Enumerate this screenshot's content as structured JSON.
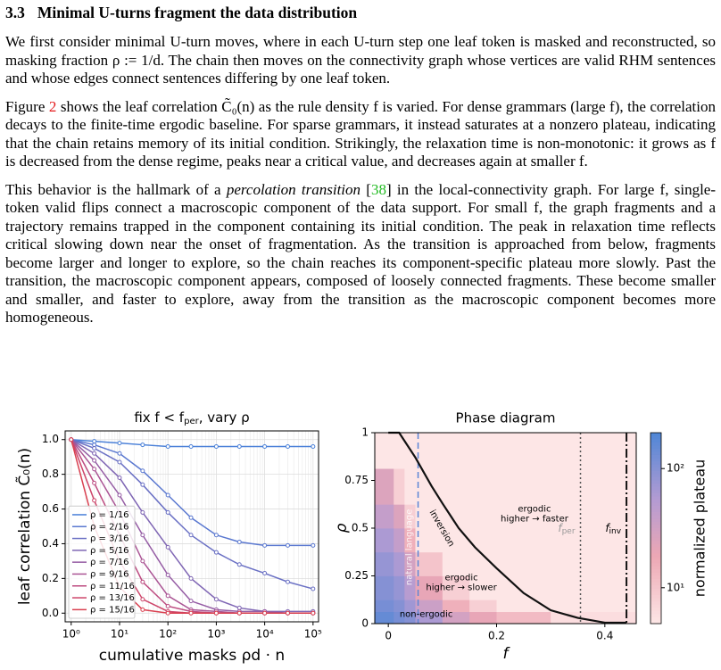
{
  "section": {
    "number": "3.3",
    "title": "Minimal U-turns fragment the data distribution"
  },
  "paragraphs": [
    [
      "We first consider minimal U-turn moves, where in each U-turn step one leaf token is masked and reconstructed, so masking fraction ρ := 1/d. The chain then moves on the connectivity graph whose vertices are valid RHM sentences and whose edges connect sentences differing by one leaf token."
    ],
    [
      "Figure ",
      "2",
      " shows the leaf correlation C̃₀(n) as the rule density f is varied. For dense grammars (large f), the correlation decays to the finite-time ergodic baseline. For sparse grammars, it instead saturates at a nonzero plateau, indicating that the chain retains memory of its initial condition. Strikingly, the relaxation time is non-monotonic: it grows as f is decreased from the dense regime, peaks near a critical value, and decreases again at smaller f."
    ],
    [
      "This behavior is the hallmark of a ",
      "percolation transition",
      " [",
      "38",
      "] in the local-connectivity graph. For large f, single-token valid flips connect a macroscopic component of the data support. For small f, the graph fragments and a trajectory remains trapped in the component containing its initial condition. The peak in relaxation time reflects critical slowing down near the onset of fragmentation. As the transition is approached from below, fragments become larger and longer to explore, so the chain reaches its component-specific plateau more slowly. Past the transition, the macroscopic component appears, composed of loosely connected fragments. These become smaller and smaller, and faster to explore, away from the transition as the macroscopic component becomes more homogeneous."
    ]
  ],
  "chart_data": [
    {
      "type": "line",
      "title": [
        "fix f < f",
        "per",
        ", vary ρ"
      ],
      "x_label": "cumulative masks  ρd · n",
      "y_label": "leaf correlation  C̃₀(n)",
      "log_x": true,
      "grid": true,
      "legend": "lower left",
      "xlim": [
        0.75,
        130000
      ],
      "ylim": [
        -0.05,
        1.05
      ],
      "xticks": [
        {
          "value": 1,
          "label": "10⁰"
        },
        {
          "value": 10,
          "label": "10¹"
        },
        {
          "value": 100,
          "label": "10²"
        },
        {
          "value": 1000,
          "label": "10³"
        },
        {
          "value": 10000,
          "label": "10⁴"
        },
        {
          "value": 100000,
          "label": "10⁵"
        }
      ],
      "yticks": [
        {
          "value": 0,
          "label": "0.0"
        },
        {
          "value": 0.2,
          "label": "0.2"
        },
        {
          "value": 0.4,
          "label": "0.4"
        },
        {
          "value": 0.6,
          "label": "0.6"
        },
        {
          "value": 0.8,
          "label": "0.8"
        },
        {
          "value": 1,
          "label": "1.0"
        }
      ],
      "x": [
        1,
        3,
        10,
        30,
        100,
        300,
        1000,
        3000,
        10000,
        30000,
        100000
      ],
      "series": [
        {
          "name": "ρ = 1/16",
          "color": "#4a80d8",
          "values": [
            1,
            0.99,
            0.98,
            0.97,
            0.96,
            0.96,
            0.96,
            0.96,
            0.96,
            0.96,
            0.96
          ]
        },
        {
          "name": "ρ = 2/16",
          "color": "#5a78d0",
          "values": [
            1,
            0.97,
            0.92,
            0.82,
            0.68,
            0.55,
            0.45,
            0.41,
            0.39,
            0.39,
            0.39
          ]
        },
        {
          "name": "ρ = 3/16",
          "color": "#6a70c4",
          "values": [
            1,
            0.95,
            0.87,
            0.74,
            0.58,
            0.45,
            0.35,
            0.28,
            0.23,
            0.18,
            0.14
          ]
        },
        {
          "name": "ρ = 5/16",
          "color": "#7f66b4",
          "values": [
            1,
            0.92,
            0.78,
            0.58,
            0.38,
            0.2,
            0.08,
            0.03,
            0.01,
            0.01,
            0.01
          ]
        },
        {
          "name": "ρ = 7/16",
          "color": "#955ca4",
          "values": [
            1,
            0.88,
            0.68,
            0.45,
            0.22,
            0.07,
            0.02,
            0.01,
            0.01,
            0,
            0
          ]
        },
        {
          "name": "ρ = 9/16",
          "color": "#aa5494",
          "values": [
            1,
            0.83,
            0.58,
            0.3,
            0.1,
            0.02,
            0.01,
            0,
            0,
            0,
            0
          ]
        },
        {
          "name": "ρ = 11/16",
          "color": "#bd4b80",
          "values": [
            1,
            0.75,
            0.45,
            0.18,
            0.04,
            0.01,
            0,
            0,
            0,
            0,
            0
          ]
        },
        {
          "name": "ρ = 13/16",
          "color": "#cd456a",
          "values": [
            1,
            0.65,
            0.3,
            0.08,
            0.01,
            0,
            0,
            0,
            0,
            0,
            0
          ]
        },
        {
          "name": "ρ = 15/16",
          "color": "#d94050",
          "values": [
            1,
            0.5,
            0.15,
            0.02,
            0,
            0,
            0,
            0,
            0,
            0,
            0
          ]
        }
      ]
    },
    {
      "type": "heatmap",
      "title": "Phase diagram",
      "x_label": "f",
      "y_label": "ρ",
      "xlim": [
        -0.025,
        0.458
      ],
      "ylim": [
        0,
        1
      ],
      "xticks": [
        0,
        0.2,
        0.4
      ],
      "yticks": [
        0,
        0.25,
        0.5,
        0.75,
        1
      ],
      "x_bins": [
        -0.025,
        0.01,
        0.03,
        0.05,
        0.1,
        0.15,
        0.2,
        0.3,
        0.458
      ],
      "y_bins": [
        0,
        0.0625,
        0.125,
        0.25,
        0.375,
        0.5,
        0.625,
        0.8125,
        1
      ],
      "values": [
        [
          150,
          120,
          100,
          60,
          30,
          20,
          12,
          6
        ],
        [
          120,
          100,
          70,
          35,
          15,
          8,
          5,
          5
        ],
        [
          100,
          80,
          50,
          20,
          8,
          5,
          5,
          5
        ],
        [
          80,
          60,
          30,
          10,
          5,
          5,
          5,
          5
        ],
        [
          60,
          40,
          15,
          5,
          5,
          5,
          5,
          5
        ],
        [
          40,
          25,
          8,
          5,
          5,
          5,
          5,
          5
        ],
        [
          25,
          8,
          5,
          5,
          5,
          5,
          5,
          5
        ],
        [
          5,
          5,
          5,
          5,
          5,
          5,
          5,
          5
        ]
      ],
      "colorbar": {
        "label": "normalized plateau",
        "log": true,
        "lim": [
          5,
          200
        ],
        "ticks": [
          {
            "value": 10,
            "label": "10¹"
          },
          {
            "value": 100,
            "label": "10²"
          }
        ]
      },
      "curve": {
        "name": "inversion",
        "color": "#111111",
        "x": [
          0,
          0.02,
          0.05,
          0.08,
          0.1,
          0.13,
          0.16,
          0.2,
          0.25,
          0.3,
          0.35,
          0.4,
          0.44
        ],
        "y": [
          1,
          1,
          0.87,
          0.72,
          0.63,
          0.5,
          0.4,
          0.29,
          0.16,
          0.07,
          0.03,
          0.005,
          0.005
        ]
      },
      "vlines": [
        {
          "x": 0.055,
          "style": "dashed",
          "color": "#5b86d6",
          "label": [
            "natural language"
          ]
        },
        {
          "x": 0.355,
          "style": "dotted",
          "color": "#555555",
          "label": [
            "f",
            "per"
          ]
        },
        {
          "x": 0.44,
          "style": "dashdot",
          "color": "#111111",
          "label": [
            "f",
            "inv"
          ]
        }
      ],
      "annotations": [
        "ergodic",
        "higher → faster",
        "ergodic",
        "higher → slower",
        "non-ergodic"
      ]
    }
  ]
}
